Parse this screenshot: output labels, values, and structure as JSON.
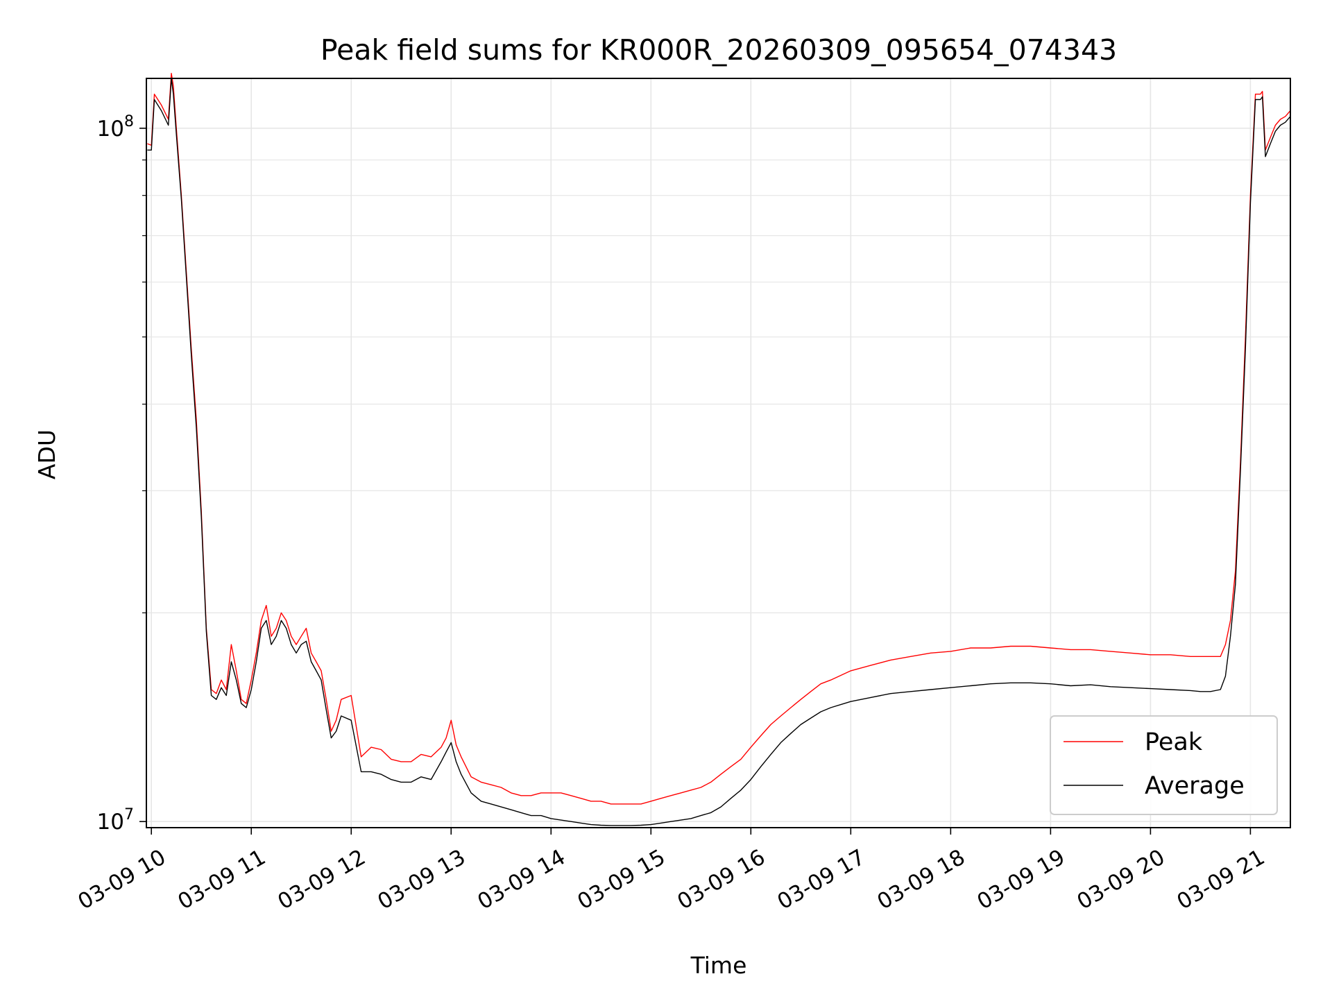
{
  "chart_data": {
    "type": "line",
    "title": "Peak field sums for KR000R_20260309_095654_074343",
    "xlabel": "Time",
    "ylabel": "ADU",
    "yscale": "log",
    "ylim": [
      9800000,
      118000000
    ],
    "xlim": [
      9.95,
      21.4
    ],
    "grid": true,
    "legend_position": "lower-right",
    "x_ticks": [
      10,
      11,
      12,
      13,
      14,
      15,
      16,
      17,
      18,
      19,
      20,
      21
    ],
    "x_tick_labels": [
      "03-09 10",
      "03-09 11",
      "03-09 12",
      "03-09 13",
      "03-09 14",
      "03-09 15",
      "03-09 16",
      "03-09 17",
      "03-09 18",
      "03-09 19",
      "03-09 20",
      "03-09 21"
    ],
    "y_major_ticks": [
      10000000,
      100000000
    ],
    "y_major_tick_labels": [
      {
        "base": "10",
        "exp": "7"
      },
      {
        "base": "10",
        "exp": "8"
      }
    ],
    "series": [
      {
        "name": "Peak",
        "color": "#ff0000",
        "x": [
          9.96,
          10.0,
          10.03,
          10.1,
          10.17,
          10.2,
          10.22,
          10.25,
          10.3,
          10.35,
          10.4,
          10.45,
          10.5,
          10.55,
          10.6,
          10.65,
          10.7,
          10.75,
          10.8,
          10.85,
          10.9,
          10.95,
          11.0,
          11.05,
          11.1,
          11.15,
          11.2,
          11.25,
          11.3,
          11.35,
          11.4,
          11.45,
          11.5,
          11.55,
          11.6,
          11.65,
          11.7,
          11.75,
          11.8,
          11.85,
          11.9,
          12.0,
          12.1,
          12.2,
          12.3,
          12.4,
          12.5,
          12.6,
          12.7,
          12.8,
          12.9,
          12.95,
          13.0,
          13.05,
          13.1,
          13.2,
          13.3,
          13.4,
          13.5,
          13.6,
          13.7,
          13.8,
          13.9,
          14.0,
          14.1,
          14.2,
          14.3,
          14.4,
          14.5,
          14.6,
          14.7,
          14.8,
          14.9,
          15.0,
          15.1,
          15.2,
          15.3,
          15.4,
          15.5,
          15.6,
          15.7,
          15.8,
          15.9,
          16.0,
          16.1,
          16.2,
          16.3,
          16.4,
          16.5,
          16.6,
          16.7,
          16.8,
          17.0,
          17.2,
          17.4,
          17.6,
          17.8,
          18.0,
          18.2,
          18.4,
          18.6,
          18.8,
          19.0,
          19.2,
          19.4,
          19.6,
          19.8,
          20.0,
          20.2,
          20.4,
          20.5,
          20.6,
          20.7,
          20.75,
          20.8,
          20.85,
          20.9,
          20.95,
          21.0,
          21.05,
          21.1,
          21.12,
          21.15,
          21.2,
          21.25,
          21.3,
          21.35,
          21.4
        ],
        "values": [
          95000000,
          94500000,
          112000000,
          108000000,
          103000000,
          120000000,
          115000000,
          100000000,
          80000000,
          62000000,
          48000000,
          38000000,
          28000000,
          19000000,
          15500000,
          15300000,
          16000000,
          15500000,
          18000000,
          16500000,
          15000000,
          14800000,
          16000000,
          17500000,
          19500000,
          20500000,
          18500000,
          19000000,
          20000000,
          19500000,
          18500000,
          18000000,
          18500000,
          19000000,
          17500000,
          17000000,
          16500000,
          15000000,
          13500000,
          14000000,
          15000000,
          15200000,
          12400000,
          12800000,
          12700000,
          12300000,
          12200000,
          12200000,
          12500000,
          12400000,
          12800000,
          13200000,
          14000000,
          12900000,
          12400000,
          11600000,
          11400000,
          11300000,
          11200000,
          11000000,
          10900000,
          10900000,
          11000000,
          11000000,
          11000000,
          10900000,
          10800000,
          10700000,
          10700000,
          10600000,
          10600000,
          10600000,
          10600000,
          10700000,
          10800000,
          10900000,
          11000000,
          11100000,
          11200000,
          11400000,
          11700000,
          12000000,
          12300000,
          12800000,
          13300000,
          13800000,
          14200000,
          14600000,
          15000000,
          15400000,
          15800000,
          16000000,
          16500000,
          16800000,
          17100000,
          17300000,
          17500000,
          17600000,
          17800000,
          17800000,
          17900000,
          17900000,
          17800000,
          17700000,
          17700000,
          17600000,
          17500000,
          17400000,
          17400000,
          17300000,
          17300000,
          17300000,
          17300000,
          18000000,
          19500000,
          23000000,
          33000000,
          50000000,
          80000000,
          112000000,
          112000000,
          113000000,
          93000000,
          97000000,
          101000000,
          103000000,
          104000000,
          106000000
        ]
      },
      {
        "name": "Average",
        "color": "#000000",
        "x": [
          9.96,
          10.0,
          10.03,
          10.1,
          10.17,
          10.2,
          10.22,
          10.25,
          10.3,
          10.35,
          10.4,
          10.45,
          10.5,
          10.55,
          10.6,
          10.65,
          10.7,
          10.75,
          10.8,
          10.85,
          10.9,
          10.95,
          11.0,
          11.05,
          11.1,
          11.15,
          11.2,
          11.25,
          11.3,
          11.35,
          11.4,
          11.45,
          11.5,
          11.55,
          11.6,
          11.65,
          11.7,
          11.75,
          11.8,
          11.85,
          11.9,
          12.0,
          12.1,
          12.2,
          12.3,
          12.4,
          12.5,
          12.6,
          12.7,
          12.8,
          12.9,
          12.95,
          13.0,
          13.05,
          13.1,
          13.2,
          13.3,
          13.4,
          13.5,
          13.6,
          13.7,
          13.8,
          13.9,
          14.0,
          14.1,
          14.2,
          14.3,
          14.4,
          14.5,
          14.6,
          14.7,
          14.8,
          14.9,
          15.0,
          15.1,
          15.2,
          15.3,
          15.4,
          15.5,
          15.6,
          15.7,
          15.8,
          15.9,
          16.0,
          16.1,
          16.2,
          16.3,
          16.4,
          16.5,
          16.6,
          16.7,
          16.8,
          17.0,
          17.2,
          17.4,
          17.6,
          17.8,
          18.0,
          18.2,
          18.4,
          18.6,
          18.8,
          19.0,
          19.2,
          19.4,
          19.6,
          19.8,
          20.0,
          20.2,
          20.4,
          20.5,
          20.6,
          20.7,
          20.75,
          20.8,
          20.85,
          20.9,
          20.95,
          21.0,
          21.05,
          21.1,
          21.12,
          21.15,
          21.2,
          21.25,
          21.3,
          21.35,
          21.4
        ],
        "values": [
          93000000,
          93000000,
          110000000,
          106000000,
          101000000,
          118000000,
          112000000,
          98000000,
          79000000,
          61000000,
          47000000,
          37000000,
          27500000,
          18800000,
          15200000,
          15000000,
          15600000,
          15200000,
          17000000,
          16000000,
          14800000,
          14600000,
          15500000,
          17000000,
          19000000,
          19500000,
          18000000,
          18500000,
          19500000,
          19000000,
          18000000,
          17500000,
          18000000,
          18200000,
          17000000,
          16500000,
          16000000,
          14500000,
          13200000,
          13500000,
          14200000,
          14000000,
          11800000,
          11800000,
          11700000,
          11500000,
          11400000,
          11400000,
          11600000,
          11500000,
          12200000,
          12600000,
          13000000,
          12200000,
          11700000,
          11000000,
          10700000,
          10600000,
          10500000,
          10400000,
          10300000,
          10200000,
          10200000,
          10100000,
          10050000,
          10000000,
          9950000,
          9900000,
          9880000,
          9870000,
          9870000,
          9870000,
          9880000,
          9900000,
          9950000,
          10000000,
          10050000,
          10100000,
          10200000,
          10300000,
          10500000,
          10800000,
          11100000,
          11500000,
          12000000,
          12500000,
          13000000,
          13400000,
          13800000,
          14100000,
          14400000,
          14600000,
          14900000,
          15100000,
          15300000,
          15400000,
          15500000,
          15600000,
          15700000,
          15800000,
          15850000,
          15850000,
          15800000,
          15700000,
          15750000,
          15650000,
          15600000,
          15550000,
          15500000,
          15450000,
          15400000,
          15400000,
          15500000,
          16200000,
          18500000,
          22000000,
          32000000,
          48000000,
          78000000,
          110000000,
          110000000,
          111000000,
          91000000,
          95000000,
          99000000,
          101000000,
          102000000,
          104000000
        ]
      }
    ]
  }
}
